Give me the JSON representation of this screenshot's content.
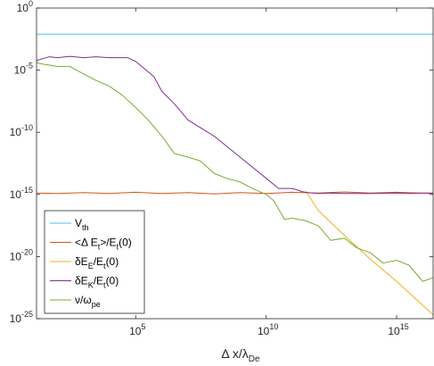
{
  "chart_data": {
    "type": "line",
    "xlabel": "Δ x/λ_De",
    "xscale": "log",
    "yscale": "log",
    "xlim": [
      15.85,
      2.5e+16
    ],
    "ylim": [
      1e-25,
      1
    ],
    "grid": false,
    "legend_position": "bottom-left",
    "x_ticks": [
      {
        "value": 100000.0,
        "base": "10",
        "exp": "5"
      },
      {
        "value": 10000000000.0,
        "base": "10",
        "exp": "10"
      },
      {
        "value": 1000000000000000.0,
        "base": "10",
        "exp": "15"
      }
    ],
    "y_ticks": [
      {
        "value": 1,
        "base": "10",
        "exp": "0"
      },
      {
        "value": 1e-05,
        "base": "10",
        "exp": "-5"
      },
      {
        "value": 1e-10,
        "base": "10",
        "exp": "-10"
      },
      {
        "value": 1e-15,
        "base": "10",
        "exp": "-15"
      },
      {
        "value": 1e-20,
        "base": "10",
        "exp": "-20"
      },
      {
        "value": 1e-25,
        "base": "10",
        "exp": "-25"
      }
    ],
    "series": [
      {
        "name": "V_th",
        "legend": {
          "main": "V",
          "sub": "th",
          "tail": ""
        },
        "color": "#4dbeee",
        "x": [
          15.85,
          2.5e+16
        ],
        "y": [
          0.0079,
          0.0079
        ]
      },
      {
        "name": "<Δ E_t>/E_t(0)",
        "legend": {
          "main": "<Δ E",
          "sub": "t",
          "tail": ">/E",
          "sub2": "t",
          "tail2": "(0)"
        },
        "color": "#d95319",
        "x": [
          15.85,
          100.0,
          1000.0,
          10000.0,
          100000.0,
          1000000.0,
          10000000.0,
          100000000.0,
          1000000000.0,
          10000000000.0,
          100000000000.0,
          1000000000000.0,
          10000000000000.0,
          100000000000000.0,
          1000000000000000.0,
          2.5e+16
        ],
        "y": [
          1.3e-15,
          1.2e-15,
          1.4e-15,
          1.2e-15,
          1.5e-15,
          1.2e-15,
          1.4e-15,
          1.1e-15,
          1.4e-15,
          1.2e-15,
          1.5e-15,
          1.3e-15,
          1.6e-15,
          1.3e-15,
          1.5e-15,
          1.2e-15
        ]
      },
      {
        "name": "δE_E/E_t(0)",
        "legend": {
          "main": "δE",
          "sub": "E",
          "tail": "/E",
          "sub2": "t",
          "tail2": "(0)"
        },
        "color": "#edb120",
        "x": [
          320000000000.0,
          1000000000000.0,
          10000000000000.0,
          100000000000000.0,
          1000000000000000.0,
          1e+16,
          2.5e+16
        ],
        "y": [
          2e-15,
          5e-17,
          5e-19,
          6e-21,
          1e-22,
          1.2e-24,
          2e-25
        ]
      },
      {
        "name": "δE_K/E_t(0)",
        "legend": {
          "main": "δE",
          "sub": "K",
          "tail": "/E",
          "sub2": "t",
          "tail2": "(0)"
        },
        "color": "#7e2f8e",
        "x": [
          15.85,
          50,
          100,
          300,
          1000,
          3000,
          10000,
          50000,
          100000,
          200000,
          500000,
          1000000.0,
          3000000.0,
          10000000.0,
          100000000.0,
          1000000000.0,
          10000000000.0,
          30000000000.0,
          100000000000.0,
          300000000000.0,
          1000000000000.0,
          3000000000000.0,
          10000000000000.0,
          100000000000000.0,
          1000000000000000.0,
          3000000000000000.0,
          1e+16,
          2.5e+16
        ],
        "y": [
          6e-05,
          0.00012,
          0.0001,
          0.00013,
          0.0001,
          0.00012,
          0.0001,
          0.0001,
          5e-05,
          1.5e-05,
          3e-06,
          2e-07,
          2e-08,
          1e-09,
          5e-11,
          1e-12,
          2e-14,
          3e-15,
          3e-15,
          1.5e-15,
          1.2e-15,
          1.3e-15,
          1.2e-15,
          1.2e-15,
          1.3e-15,
          1.2e-15,
          1.3e-15,
          1.3e-15
        ]
      },
      {
        "name": "ν/ω_pe",
        "legend": {
          "main": "ν/ω",
          "sub": "pe",
          "tail": ""
        },
        "color": "#77ac30",
        "x": [
          15.85,
          30,
          100,
          300,
          1000,
          3000,
          10000,
          30000,
          100000,
          300000,
          1000000.0,
          3000000.0,
          10000000.0,
          30000000.0,
          100000000.0,
          300000000.0,
          1000000000.0,
          3000000000.0,
          10000000000.0,
          20000000000.0,
          50000000000.0,
          100000000000.0,
          300000000000.0,
          1000000000000.0,
          3000000000000.0,
          10000000000000.0,
          30000000000000.0,
          100000000000000.0,
          300000000000000.0,
          1000000000000000.0,
          3000000000000000.0,
          1e+16,
          2.5e+16
        ],
        "y": [
          4e-05,
          3e-05,
          2e-05,
          2e-05,
          5e-06,
          1.5e-06,
          5e-07,
          1e-07,
          1e-08,
          1e-09,
          5e-11,
          2e-12,
          1e-12,
          5e-13,
          5e-14,
          2e-14,
          1e-14,
          3e-15,
          1e-15,
          3e-16,
          1e-17,
          1.2e-17,
          8e-18,
          3e-18,
          2e-19,
          3e-19,
          5e-20,
          2e-20,
          3e-21,
          5e-21,
          2e-21,
          1e-22,
          2e-22
        ]
      }
    ]
  }
}
